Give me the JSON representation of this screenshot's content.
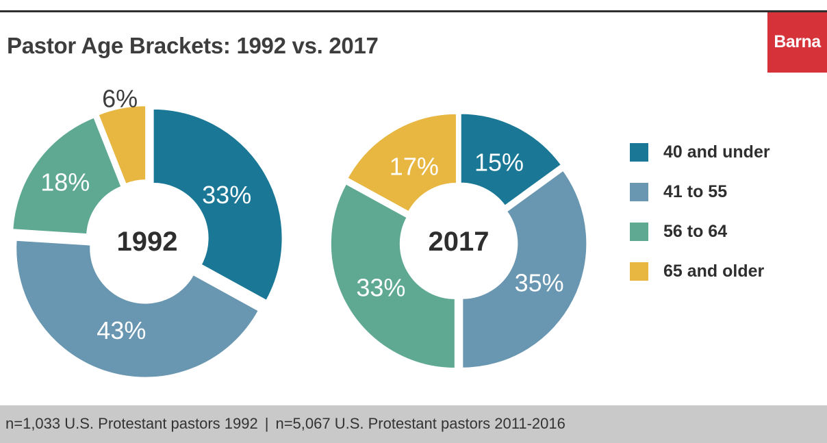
{
  "title": "Pastor Age Brackets: 1992 vs. 2017",
  "logo": "Barna",
  "footer": {
    "left": "n=1,033 U.S. Protestant pastors 1992",
    "separator": "|",
    "right": "n=5,067 U.S. Protestant pastors 2011-2016"
  },
  "colors": {
    "c40_under": "#1a7896",
    "c41_55": "#6996b0",
    "c56_64": "#5fa993",
    "c65_older": "#e8b742",
    "center_text": "#2e2e2e"
  },
  "chart_data": [
    {
      "type": "pie",
      "title": "1992",
      "categories": [
        "40 and under",
        "41 to 55",
        "56 to 64",
        "65 and older"
      ],
      "values": [
        33,
        43,
        18,
        6
      ],
      "labels": [
        "33%",
        "43%",
        "18%",
        "6%"
      ]
    },
    {
      "type": "pie",
      "title": "2017",
      "categories": [
        "40 and under",
        "41 to 55",
        "56 to 64",
        "65 and older"
      ],
      "values": [
        15,
        35,
        33,
        17
      ],
      "labels": [
        "15%",
        "35%",
        "33%",
        "17%"
      ]
    }
  ],
  "legend": [
    {
      "label": "40 and under",
      "color": "#1a7896"
    },
    {
      "label": "41 to 55",
      "color": "#6996b0"
    },
    {
      "label": "56 to 64",
      "color": "#5fa993"
    },
    {
      "label": "65 and older",
      "color": "#e8b742"
    }
  ]
}
